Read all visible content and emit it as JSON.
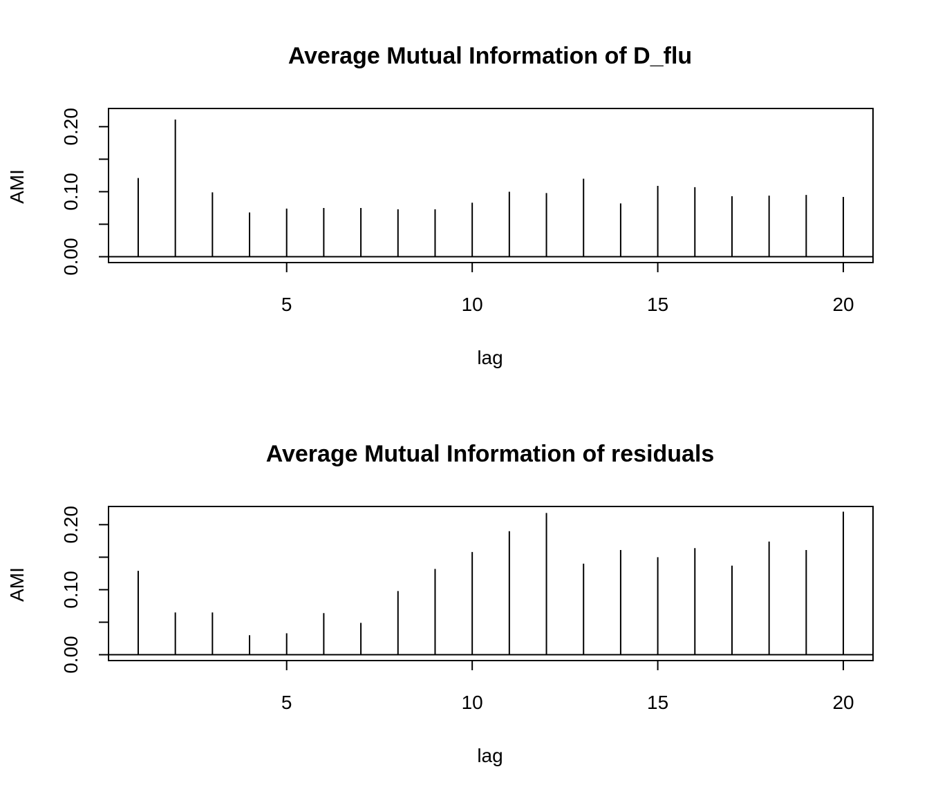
{
  "chart_data": [
    {
      "type": "bar",
      "style": "spikes",
      "title": "Average Mutual Information of D_flu",
      "xlabel": "lag",
      "ylabel": "AMI",
      "x": [
        1,
        2,
        3,
        4,
        5,
        6,
        7,
        8,
        9,
        10,
        11,
        12,
        13,
        14,
        15,
        16,
        17,
        18,
        19,
        20
      ],
      "values": [
        0.121,
        0.211,
        0.099,
        0.068,
        0.074,
        0.075,
        0.075,
        0.073,
        0.073,
        0.083,
        0.1,
        0.098,
        0.12,
        0.082,
        0.109,
        0.107,
        0.093,
        0.094,
        0.095,
        0.092
      ],
      "xticks": [
        5,
        10,
        15,
        20
      ],
      "xtick_labels": [
        "5",
        "10",
        "15",
        "20"
      ],
      "yticks": [
        0.0,
        0.05,
        0.1,
        0.15,
        0.2
      ],
      "ytick_labels": [
        "0.00",
        "",
        "0.10",
        "",
        "0.20"
      ],
      "xlim": [
        0.2,
        20.8
      ],
      "ylim": [
        -0.009,
        0.228
      ],
      "baseline": 0,
      "grid": false,
      "legend": "none"
    },
    {
      "type": "bar",
      "style": "spikes",
      "title": "Average Mutual Information of residuals",
      "xlabel": "lag",
      "ylabel": "AMI",
      "x": [
        1,
        2,
        3,
        4,
        5,
        6,
        7,
        8,
        9,
        10,
        11,
        12,
        13,
        14,
        15,
        16,
        17,
        18,
        19,
        20
      ],
      "values": [
        0.129,
        0.065,
        0.065,
        0.03,
        0.033,
        0.064,
        0.049,
        0.098,
        0.132,
        0.158,
        0.19,
        0.218,
        0.14,
        0.161,
        0.15,
        0.164,
        0.137,
        0.174,
        0.161,
        0.22
      ],
      "xticks": [
        5,
        10,
        15,
        20
      ],
      "xtick_labels": [
        "5",
        "10",
        "15",
        "20"
      ],
      "yticks": [
        0.0,
        0.05,
        0.1,
        0.15,
        0.2
      ],
      "ytick_labels": [
        "0.00",
        "",
        "0.10",
        "",
        "0.20"
      ],
      "xlim": [
        0.2,
        20.8
      ],
      "ylim": [
        -0.009,
        0.228
      ],
      "baseline": 0,
      "grid": false,
      "legend": "none"
    }
  ]
}
